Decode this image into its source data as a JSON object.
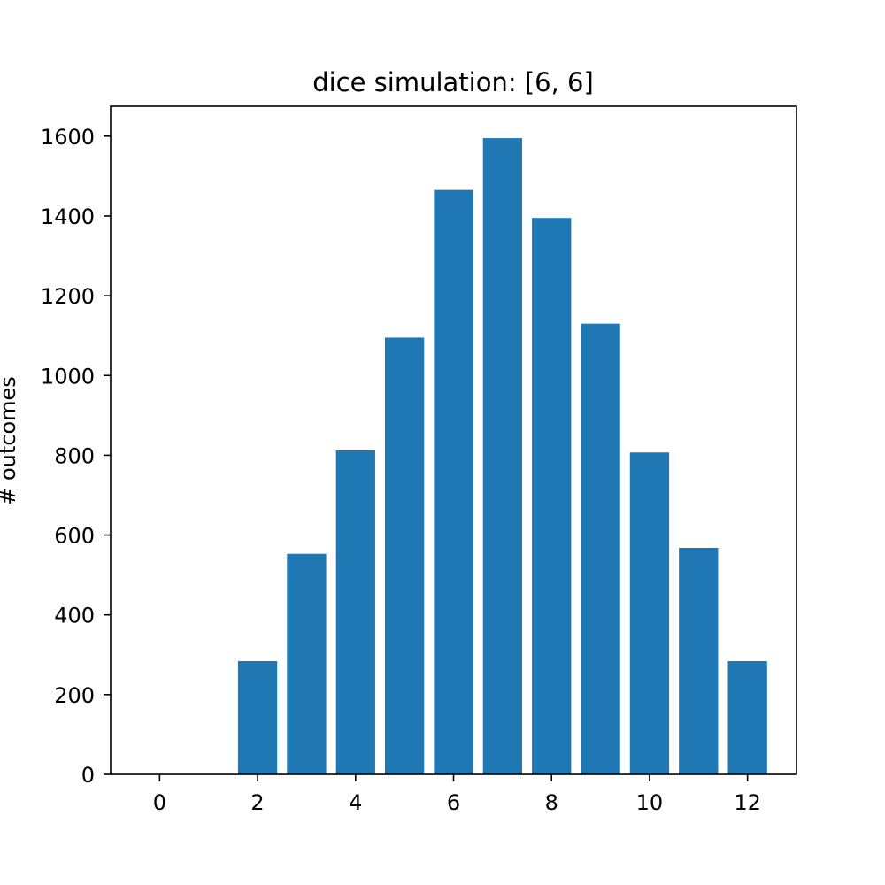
{
  "chart_data": {
    "type": "bar",
    "title": "dice simulation: [6, 6]",
    "xlabel": "",
    "ylabel": "# outcomes",
    "x": [
      2,
      3,
      4,
      5,
      6,
      7,
      8,
      9,
      10,
      11,
      12
    ],
    "values": [
      284,
      553,
      812,
      1095,
      1465,
      1595,
      1395,
      1130,
      807,
      568,
      284
    ],
    "bar_width": 0.8,
    "xlim": [
      -1,
      13
    ],
    "ylim": [
      0,
      1675
    ],
    "xticks": [
      0,
      2,
      4,
      6,
      8,
      10,
      12
    ],
    "yticks": [
      0,
      200,
      400,
      600,
      800,
      1000,
      1200,
      1400,
      1600
    ],
    "grid": false,
    "legend": "none",
    "bar_color": "#1f77b4"
  }
}
